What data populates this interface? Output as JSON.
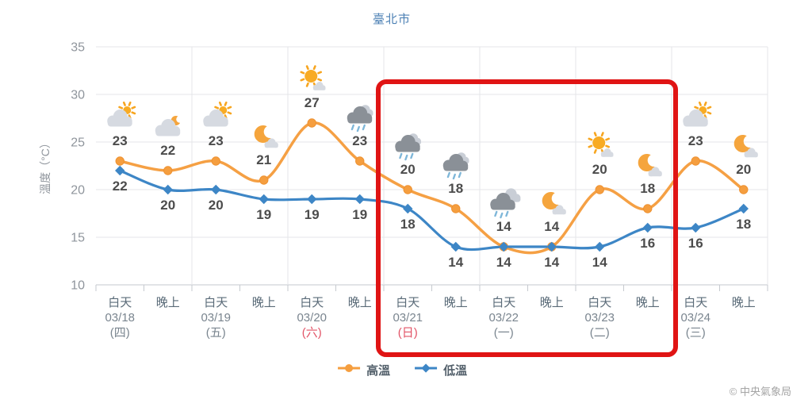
{
  "title": "臺北市",
  "y_axis": {
    "label": "溫度（°C）",
    "ticks": [
      35,
      30,
      25,
      20,
      15,
      10
    ]
  },
  "legend": [
    {
      "name": "高溫",
      "color": "#f59e3f"
    },
    {
      "name": "低溫",
      "color": "#3d86c6"
    }
  ],
  "copyright": "© 中央氣象局",
  "colors": {
    "high": "#f5a044",
    "high_marker": "#f59e3f",
    "high_marker_edge": "#ee9130",
    "low": "#3d86c6",
    "highlight": "#e01414",
    "title": "#4c80b4",
    "temp_label": "#4c4c4c",
    "holiday": "#e25467",
    "axis_text": "#8f959c",
    "x_period": "#5a6b78",
    "x_date": "#7a858f",
    "grid": "#e4e6e8",
    "axis_line": "#c6cacf",
    "copyright": "#a5a5a5",
    "cloud_light": "#d6dae1",
    "cloud_back": "#c9ced6",
    "cloud_dark": "#8a9097",
    "sun": "#f8ab24",
    "sun_ray": "#f7a51f",
    "moon": "#f5a53d",
    "drop": "#7fb7d9"
  },
  "chart_data": {
    "type": "line",
    "title": "臺北市",
    "ylabel": "溫度（°C）",
    "ylim": [
      10,
      35
    ],
    "yticks": [
      35,
      30,
      25,
      20,
      15,
      10
    ],
    "grid": true,
    "legend_position": "bottom",
    "x_labels": [
      {
        "period": "白天",
        "date": "03/18",
        "weekday": "(四)",
        "holiday": false
      },
      {
        "period": "晚上"
      },
      {
        "period": "白天",
        "date": "03/19",
        "weekday": "(五)",
        "holiday": false
      },
      {
        "period": "晚上"
      },
      {
        "period": "白天",
        "date": "03/20",
        "weekday": "(六)",
        "holiday": true
      },
      {
        "period": "晚上"
      },
      {
        "period": "白天",
        "date": "03/21",
        "weekday": "(日)",
        "holiday": true
      },
      {
        "period": "晚上"
      },
      {
        "period": "白天",
        "date": "03/22",
        "weekday": "(一)",
        "holiday": false
      },
      {
        "period": "晚上"
      },
      {
        "period": "白天",
        "date": "03/23",
        "weekday": "(二)",
        "holiday": false
      },
      {
        "period": "晚上"
      },
      {
        "period": "白天",
        "date": "03/24",
        "weekday": "(三)",
        "holiday": false
      },
      {
        "period": "晚上"
      }
    ],
    "series": [
      {
        "name": "高溫",
        "values": [
          23,
          22,
          23,
          21,
          27,
          23,
          20,
          18,
          14,
          14,
          20,
          18,
          23,
          20
        ],
        "icons": [
          "cloud-sun",
          "cloud-moon",
          "cloud-sun",
          "moon-cloud",
          "sun-cloud",
          "rain",
          "rain",
          "rain",
          "rain-2clouds",
          "moon-cloud",
          "sun-cloud",
          "moon-cloud",
          "cloud-sun",
          "moon-cloud"
        ]
      },
      {
        "name": "低溫",
        "values": [
          22,
          20,
          20,
          19,
          19,
          19,
          18,
          14,
          14,
          14,
          14,
          16,
          16,
          18
        ]
      }
    ],
    "highlight": {
      "start_index": 6,
      "end_index": 11,
      "dates": [
        "03/21",
        "03/22",
        "03/23"
      ]
    }
  }
}
